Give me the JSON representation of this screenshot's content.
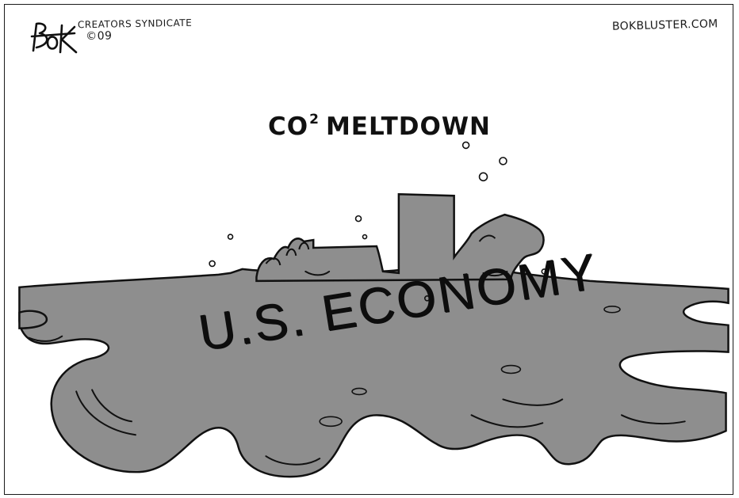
{
  "cartoon": {
    "signature": "BOK",
    "syndicate": "CREATORS SYNDICATE",
    "copyright": "©09",
    "website": "BOKBLUSTER.COM",
    "title_prefix": "CO",
    "title_superscript": "2",
    "title_suffix": "MELTDOWN",
    "puddle_label": "U.S. ECONOMY"
  },
  "colors": {
    "puddle": "#8c8c8c",
    "puddle_shadow": "#6e6e6e",
    "ink": "#111111",
    "paper": "#ffffff"
  }
}
